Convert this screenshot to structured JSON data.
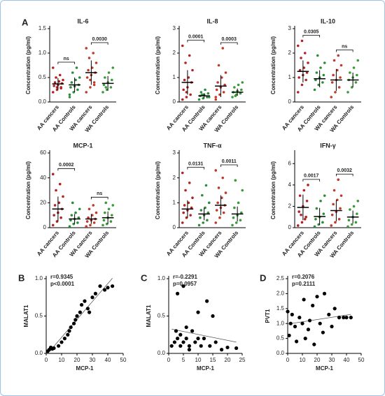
{
  "chart_data": [
    {
      "type": "strip",
      "panel": "A",
      "title": "IL-6",
      "ylabel": "Concentration (pg/ml)",
      "categories": [
        "AA cancers",
        "AA Controls",
        "WA cancers",
        "WA Controls"
      ],
      "colors": [
        "#b22222",
        "#2e8b3a",
        "#c0392b",
        "#3a9a3a"
      ],
      "points": [
        [
          0.2,
          0.25,
          0.3,
          0.33,
          0.35,
          0.38,
          0.4,
          0.42,
          0.45,
          0.5,
          0.55,
          0.7,
          0.3,
          0.28
        ],
        [
          0.1,
          0.2,
          0.25,
          0.3,
          0.32,
          0.35,
          0.4,
          0.45,
          0.5,
          0.6,
          0.7,
          0.15
        ],
        [
          0.2,
          0.3,
          0.4,
          0.5,
          0.55,
          0.6,
          0.65,
          0.7,
          0.8,
          0.9,
          1.0,
          1.1,
          0.45,
          0.35
        ],
        [
          0.2,
          0.25,
          0.3,
          0.35,
          0.4,
          0.45,
          0.5,
          0.6,
          0.7,
          0.3
        ]
      ],
      "means": [
        0.37,
        0.35,
        0.6,
        0.38
      ],
      "errors": [
        0.12,
        0.15,
        0.25,
        0.15
      ],
      "annotations": [
        {
          "groups": [
            0,
            1
          ],
          "label": "ns"
        },
        {
          "groups": [
            2,
            3
          ],
          "label": "0.0030"
        }
      ],
      "ylim": [
        0,
        1.5
      ],
      "yticks": [
        {
          "value": 0,
          "label": "0.0"
        },
        0.5,
        {
          "value": 1,
          "label": "1.0"
        },
        1.5
      ]
    },
    {
      "type": "strip",
      "title": "IL-8",
      "ylabel": "Concentration (pg/ml)",
      "categories": [
        "AA cancers",
        "AA Controls",
        "WA cancers",
        "WA Controls"
      ],
      "colors": [
        "#b22222",
        "#2e8b3a",
        "#c0392b",
        "#3a9a3a"
      ],
      "points": [
        [
          0.1,
          0.2,
          0.3,
          0.5,
          0.6,
          0.8,
          0.9,
          1.0,
          1.3,
          1.6,
          1.9,
          2.3,
          0.4
        ],
        [
          0.1,
          0.15,
          0.2,
          0.25,
          0.3,
          0.35,
          0.4,
          0.5,
          0.2,
          0.3
        ],
        [
          0.1,
          0.3,
          0.4,
          0.5,
          0.6,
          0.7,
          0.8,
          1.0,
          1.2,
          1.5,
          2.2,
          0.2
        ],
        [
          0.2,
          0.3,
          0.35,
          0.4,
          0.45,
          0.5,
          0.6,
          0.7,
          0.8,
          0.25
        ]
      ],
      "means": [
        0.8,
        0.25,
        0.65,
        0.4
      ],
      "errors": [
        0.5,
        0.1,
        0.45,
        0.15
      ],
      "annotations": [
        {
          "groups": [
            0,
            1
          ],
          "label": "0.0001"
        },
        {
          "groups": [
            2,
            3
          ],
          "label": "0.0003"
        }
      ],
      "ylim": [
        0,
        3
      ],
      "yticks": [
        0,
        1,
        2,
        3
      ]
    },
    {
      "type": "strip",
      "title": "IL-10",
      "ylabel": "Concentration (pg/ml)",
      "categories": [
        "AA cancers",
        "AA Controls",
        "WA cancers",
        "WA Controls"
      ],
      "colors": [
        "#b22222",
        "#2e8b3a",
        "#c0392b",
        "#3a9a3a"
      ],
      "points": [
        [
          0.4,
          0.7,
          0.9,
          1.0,
          1.1,
          1.2,
          1.3,
          1.4,
          1.6,
          1.8,
          2.0,
          2.3,
          2.5
        ],
        [
          0.5,
          0.7,
          0.8,
          0.9,
          1.0,
          1.1,
          1.2,
          1.4,
          1.6,
          1.9
        ],
        [
          0.2,
          0.4,
          0.6,
          0.8,
          0.9,
          1.0,
          1.1,
          1.3,
          1.5,
          1.7,
          1.9
        ],
        [
          0.4,
          0.6,
          0.8,
          0.9,
          1.0,
          1.1,
          1.2,
          1.4,
          1.7
        ]
      ],
      "means": [
        1.25,
        0.95,
        0.9,
        0.9
      ],
      "errors": [
        0.45,
        0.35,
        0.45,
        0.3
      ],
      "annotations": [
        {
          "groups": [
            0,
            1
          ],
          "label": "0.0305"
        },
        {
          "groups": [
            2,
            3
          ],
          "label": "ns"
        }
      ],
      "ylim": [
        0,
        3
      ],
      "yticks": [
        0,
        1,
        2,
        3
      ]
    },
    {
      "type": "strip",
      "title": "MCP-1",
      "ylabel": "Concentration (pg/ml)",
      "categories": [
        "AA cancers",
        "AA Controls",
        "WA cancers",
        "WA Controls"
      ],
      "colors": [
        "#b22222",
        "#2e8b3a",
        "#c0392b",
        "#3a9a3a"
      ],
      "points": [
        [
          2,
          5,
          8,
          10,
          12,
          15,
          18,
          20,
          25,
          30,
          35,
          43
        ],
        [
          1,
          3,
          4,
          6,
          7,
          8,
          10,
          12,
          15,
          20
        ],
        [
          1,
          2,
          4,
          5,
          6,
          7,
          8,
          10,
          12,
          15,
          18
        ],
        [
          2,
          3,
          5,
          6,
          8,
          10,
          12,
          15,
          18,
          20
        ]
      ],
      "means": [
        15,
        7,
        7,
        8
      ],
      "errors": [
        10,
        4,
        4,
        5
      ],
      "annotations": [
        {
          "groups": [
            0,
            1
          ],
          "label": "0.0002"
        },
        {
          "groups": [
            2,
            3
          ],
          "label": "ns"
        }
      ],
      "ylim": [
        0,
        60
      ],
      "yticks": [
        0,
        20,
        40,
        60
      ]
    },
    {
      "type": "strip",
      "title": "TNF-α",
      "ylabel": "Concentration (pg/ml)",
      "categories": [
        "AA cancers",
        "AA Controls",
        "WA cancers",
        "WA Controls"
      ],
      "colors": [
        "#b22222",
        "#2e8b3a",
        "#c0392b",
        "#3a9a3a"
      ],
      "points": [
        [
          0.2,
          0.4,
          0.5,
          0.6,
          0.7,
          0.8,
          0.9,
          1.0,
          1.2,
          1.5,
          1.8,
          2.2
        ],
        [
          0.1,
          0.2,
          0.3,
          0.4,
          0.5,
          0.6,
          0.7,
          0.8,
          1.0,
          1.3,
          1.7
        ],
        [
          0.2,
          0.4,
          0.6,
          0.7,
          0.8,
          0.9,
          1.0,
          1.2,
          1.4,
          1.6,
          2.0,
          2.3
        ],
        [
          0.1,
          0.2,
          0.3,
          0.4,
          0.5,
          0.6,
          0.8,
          1.0,
          1.5,
          1.9
        ]
      ],
      "means": [
        0.75,
        0.55,
        0.9,
        0.55
      ],
      "errors": [
        0.35,
        0.25,
        0.4,
        0.3
      ],
      "annotations": [
        {
          "groups": [
            0,
            1
          ],
          "label": "0.0131"
        },
        {
          "groups": [
            2,
            3
          ],
          "label": "0.0011"
        }
      ],
      "ylim": [
        0,
        3
      ],
      "yticks": [
        0,
        1,
        2,
        3
      ]
    },
    {
      "type": "strip",
      "title": "IFN-γ",
      "ylabel": "Concentration (pg/ml)",
      "categories": [
        "AA cancers",
        "AA Controls",
        "WA cancers",
        "WA Controls"
      ],
      "colors": [
        "#b22222",
        "#2e8b3a",
        "#c0392b",
        "#3a9a3a"
      ],
      "points": [
        [
          0.2,
          0.5,
          1.0,
          1.5,
          2.0,
          2.5,
          3.0,
          3.5,
          4.0,
          1.2,
          0.8
        ],
        [
          0.1,
          0.3,
          0.5,
          0.8,
          1.0,
          1.3,
          1.8,
          2.5,
          3.0
        ],
        [
          0.2,
          0.5,
          0.8,
          1.2,
          1.5,
          1.8,
          2.2,
          2.6,
          3.0,
          3.5,
          4.5
        ],
        [
          0.1,
          0.3,
          0.5,
          0.7,
          1.0,
          1.3,
          1.7,
          2.0,
          2.5
        ]
      ],
      "means": [
        1.9,
        1.05,
        1.6,
        1.0
      ],
      "errors": [
        1.2,
        0.8,
        1.0,
        0.6
      ],
      "annotations": [
        {
          "groups": [
            0,
            1
          ],
          "label": "0.0017"
        },
        {
          "groups": [
            2,
            3
          ],
          "label": "0.0032"
        }
      ],
      "ylim": [
        0,
        7
      ],
      "yticks": [
        0,
        2,
        4,
        6
      ]
    },
    {
      "type": "scatter",
      "panel": "B",
      "xlabel": "MCP-1",
      "ylabel": "MALAT1",
      "annotations": [
        "r=0.9345",
        "p<0.0001"
      ],
      "color": "#000000",
      "x": [
        1,
        2,
        3,
        4,
        5,
        8,
        10,
        12,
        14,
        15,
        16,
        18,
        19,
        20,
        22,
        23,
        25,
        27,
        28,
        30,
        32,
        35,
        38,
        40,
        43
      ],
      "y": [
        0.03,
        0.05,
        0.08,
        0.06,
        0.07,
        0.1,
        0.15,
        0.2,
        0.25,
        0.3,
        0.35,
        0.4,
        0.45,
        0.5,
        0.55,
        0.65,
        0.7,
        0.6,
        0.55,
        0.75,
        0.8,
        0.9,
        0.85,
        0.88,
        0.9
      ],
      "xlim": [
        0,
        50
      ],
      "xticks": [
        0,
        10,
        20,
        30,
        40,
        50
      ],
      "ylim": [
        0,
        1
      ],
      "yticks": [
        {
          "value": 0,
          "label": "0.0"
        },
        0.5,
        {
          "value": 1,
          "label": "1.0"
        }
      ]
    },
    {
      "type": "scatter",
      "panel": "C",
      "xlabel": "MCP-1",
      "ylabel": "MALAT1",
      "annotations": [
        "r=-0.2291",
        "p=0.0957"
      ],
      "color": "#000000",
      "x": [
        1,
        2,
        2.5,
        3,
        3,
        4,
        4,
        5,
        5,
        6,
        6,
        7,
        7,
        8,
        9,
        10,
        10,
        11,
        12,
        13,
        14,
        15,
        16,
        18,
        20,
        23
      ],
      "y": [
        0.1,
        0.15,
        0.3,
        0.2,
        0.8,
        0.1,
        0.25,
        0.9,
        0.15,
        0.2,
        0.35,
        0.1,
        0.05,
        0.3,
        0.15,
        0.2,
        0.55,
        0.1,
        0.2,
        0.7,
        0.1,
        0.5,
        0.15,
        0.05,
        0.08,
        0.07
      ],
      "xlim": [
        0,
        25
      ],
      "xticks": [
        0,
        5,
        10,
        15,
        20,
        25
      ],
      "ylim": [
        0,
        1
      ],
      "yticks": [
        {
          "value": 0,
          "label": "0.0"
        },
        0.5,
        {
          "value": 1,
          "label": "1.0"
        }
      ]
    },
    {
      "type": "scatter",
      "panel": "D",
      "xlabel": "MCP-1",
      "ylabel": "PVT1",
      "annotations": [
        "r=0.2076",
        "p=0.2111"
      ],
      "color": "#000000",
      "x": [
        0,
        1,
        2,
        3,
        5,
        6,
        8,
        10,
        11,
        12,
        14,
        15,
        17,
        18,
        20,
        22,
        24,
        25,
        28,
        30,
        32,
        35,
        38,
        40,
        43
      ],
      "y": [
        1.4,
        0.6,
        1.0,
        1.3,
        0.9,
        0.4,
        1.2,
        1.0,
        1.8,
        0.5,
        0.8,
        1.1,
        1.6,
        0.3,
        1.9,
        1.0,
        0.7,
        2.0,
        1.3,
        0.9,
        1.5,
        1.2,
        1.2,
        1.2,
        1.2
      ],
      "xlim": [
        0,
        50
      ],
      "xticks": [
        0,
        10,
        20,
        30,
        40,
        50
      ],
      "ylim": [
        0,
        2.5
      ],
      "yticks": [
        {
          "value": 0,
          "label": "0.0"
        },
        0.5,
        {
          "value": 1,
          "label": "1.0"
        },
        1.5,
        {
          "value": 2,
          "label": "2.0"
        },
        2.5
      ]
    }
  ]
}
